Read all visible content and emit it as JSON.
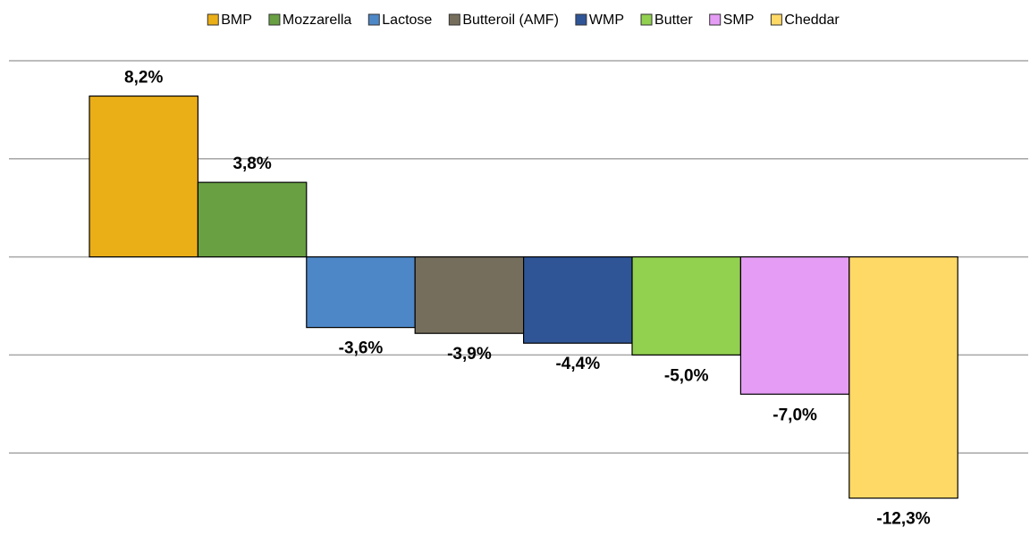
{
  "chart_data": {
    "type": "bar",
    "series": [
      {
        "name": "BMP",
        "color": "#eaae17",
        "values": [
          8.2
        ],
        "value_labels": [
          "8,2%"
        ]
      },
      {
        "name": "Mozzarella",
        "color": "#68a042",
        "values": [
          3.8
        ],
        "value_labels": [
          "3,8%"
        ]
      },
      {
        "name": "Lactose",
        "color": "#4d87c7",
        "values": [
          -3.6
        ],
        "value_labels": [
          "-3,6%"
        ]
      },
      {
        "name": "Butteroil (AMF)",
        "color": "#766e5c",
        "values": [
          -3.9
        ],
        "value_labels": [
          "-3,9%"
        ]
      },
      {
        "name": "WMP",
        "color": "#2f5597",
        "values": [
          -4.4
        ],
        "value_labels": [
          "-4,4%"
        ]
      },
      {
        "name": "Butter",
        "color": "#92d050",
        "values": [
          -5.0
        ],
        "value_labels": [
          "-5,0%"
        ]
      },
      {
        "name": "SMP",
        "color": "#e59cf5",
        "values": [
          -7.0
        ],
        "value_labels": [
          "-7,0%"
        ]
      },
      {
        "name": "Cheddar",
        "color": "#ffd966",
        "values": [
          -12.3
        ],
        "value_labels": [
          "-12,3%"
        ]
      }
    ],
    "ylim": [
      -13.5,
      10
    ],
    "yticks": [
      10,
      5,
      0,
      -5,
      -10
    ],
    "grid": true,
    "legend": "top"
  }
}
